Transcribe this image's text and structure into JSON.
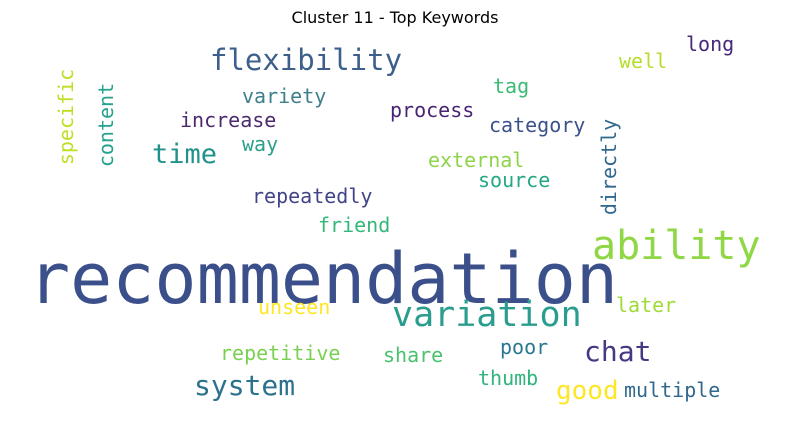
{
  "title": "Cluster 11 - Top Keywords",
  "chart_data": {
    "type": "wordcloud",
    "title": "Cluster 11 - Top Keywords",
    "words": [
      {
        "text": "recommendation",
        "weight": 1.0,
        "color": "#3b4f8a",
        "orientation": "horizontal"
      },
      {
        "text": "ability",
        "weight": 0.55,
        "color": "#8fd744",
        "orientation": "horizontal"
      },
      {
        "text": "variation",
        "weight": 0.48,
        "color": "#2a9d8f",
        "orientation": "horizontal"
      },
      {
        "text": "flexibility",
        "weight": 0.4,
        "color": "#3c5f8c",
        "orientation": "horizontal"
      },
      {
        "text": "chat",
        "weight": 0.38,
        "color": "#443983",
        "orientation": "horizontal"
      },
      {
        "text": "system",
        "weight": 0.38,
        "color": "#2c728e",
        "orientation": "horizontal"
      },
      {
        "text": "time",
        "weight": 0.36,
        "color": "#21918c",
        "orientation": "horizontal"
      },
      {
        "text": "good",
        "weight": 0.34,
        "color": "#fde725",
        "orientation": "horizontal"
      },
      {
        "text": "variety",
        "weight": 0.27,
        "color": "#3e7f8c",
        "orientation": "horizontal"
      },
      {
        "text": "increase",
        "weight": 0.27,
        "color": "#4b2a6e",
        "orientation": "horizontal"
      },
      {
        "text": "process",
        "weight": 0.27,
        "color": "#482475",
        "orientation": "horizontal"
      },
      {
        "text": "category",
        "weight": 0.27,
        "color": "#3b528b",
        "orientation": "horizontal"
      },
      {
        "text": "external",
        "weight": 0.27,
        "color": "#8ed34b",
        "orientation": "horizontal"
      },
      {
        "text": "source",
        "weight": 0.27,
        "color": "#22a884",
        "orientation": "horizontal"
      },
      {
        "text": "repeatedly",
        "weight": 0.27,
        "color": "#414487",
        "orientation": "horizontal"
      },
      {
        "text": "friend",
        "weight": 0.27,
        "color": "#35b779",
        "orientation": "horizontal"
      },
      {
        "text": "unseen",
        "weight": 0.27,
        "color": "#fde725",
        "orientation": "horizontal"
      },
      {
        "text": "later",
        "weight": 0.27,
        "color": "#a0da39",
        "orientation": "horizontal"
      },
      {
        "text": "repetitive",
        "weight": 0.27,
        "color": "#7ad151",
        "orientation": "horizontal"
      },
      {
        "text": "share",
        "weight": 0.27,
        "color": "#4ac16d",
        "orientation": "horizontal"
      },
      {
        "text": "poor",
        "weight": 0.27,
        "color": "#2a788e",
        "orientation": "horizontal"
      },
      {
        "text": "thumb",
        "weight": 0.27,
        "color": "#2fb47c",
        "orientation": "horizontal"
      },
      {
        "text": "multiple",
        "weight": 0.27,
        "color": "#31688e",
        "orientation": "horizontal"
      },
      {
        "text": "way",
        "weight": 0.25,
        "color": "#2ba08a",
        "orientation": "horizontal"
      },
      {
        "text": "tag",
        "weight": 0.25,
        "color": "#3bbb75",
        "orientation": "horizontal"
      },
      {
        "text": "well",
        "weight": 0.25,
        "color": "#b5de2b",
        "orientation": "horizontal"
      },
      {
        "text": "long",
        "weight": 0.25,
        "color": "#482878",
        "orientation": "horizontal"
      },
      {
        "text": "specific",
        "weight": 0.27,
        "color": "#bddf26",
        "orientation": "vertical"
      },
      {
        "text": "content",
        "weight": 0.27,
        "color": "#25a18e",
        "orientation": "vertical"
      },
      {
        "text": "directly",
        "weight": 0.27,
        "color": "#31688e",
        "orientation": "vertical"
      }
    ]
  }
}
